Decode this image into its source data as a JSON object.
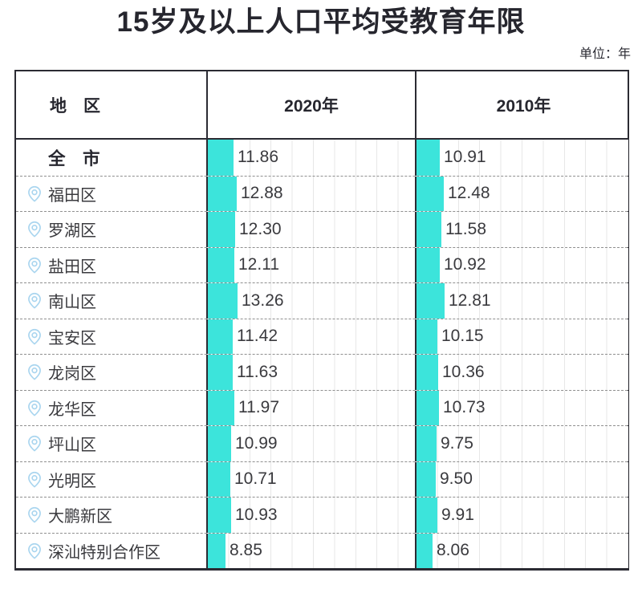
{
  "title": "15岁及以上人口平均受教育年限",
  "unit_label": "单位：年",
  "colors": {
    "bar": "#3ce4db",
    "pin": "#a9d5ef",
    "border": "#2b2b33",
    "gridline": "#e7e7e7",
    "row_divider": "#8f8f8f",
    "text": "#3a3a3e"
  },
  "table": {
    "columns": [
      {
        "label": "地　区"
      },
      {
        "label": "2020年"
      },
      {
        "label": "2010年"
      }
    ],
    "rows": [
      {
        "region": "全　市",
        "is_total": true,
        "has_pin": false,
        "v2020": "11.86",
        "v2010": "10.91"
      },
      {
        "region": "福田区",
        "is_total": false,
        "has_pin": true,
        "v2020": "12.88",
        "v2010": "12.48"
      },
      {
        "region": "罗湖区",
        "is_total": false,
        "has_pin": true,
        "v2020": "12.30",
        "v2010": "11.58"
      },
      {
        "region": "盐田区",
        "is_total": false,
        "has_pin": true,
        "v2020": "12.11",
        "v2010": "10.92"
      },
      {
        "region": "南山区",
        "is_total": false,
        "has_pin": true,
        "v2020": "13.26",
        "v2010": "12.81"
      },
      {
        "region": "宝安区",
        "is_total": false,
        "has_pin": true,
        "v2020": "11.42",
        "v2010": "10.15"
      },
      {
        "region": "龙岗区",
        "is_total": false,
        "has_pin": true,
        "v2020": "11.63",
        "v2010": "10.36"
      },
      {
        "region": "龙华区",
        "is_total": false,
        "has_pin": true,
        "v2020": "11.97",
        "v2010": "10.73"
      },
      {
        "region": "坪山区",
        "is_total": false,
        "has_pin": true,
        "v2020": "10.99",
        "v2010": "9.75"
      },
      {
        "region": "光明区",
        "is_total": false,
        "has_pin": true,
        "v2020": "10.71",
        "v2010": "9.50"
      },
      {
        "region": "大鹏新区",
        "is_total": false,
        "has_pin": true,
        "v2020": "10.93",
        "v2010": "9.91"
      },
      {
        "region": "深汕特别合作区",
        "is_total": false,
        "has_pin": true,
        "v2020": "8.85",
        "v2010": "8.06"
      }
    ]
  },
  "chart_data": {
    "type": "bar",
    "orientation": "horizontal",
    "title": "15岁及以上人口平均受教育年限",
    "unit": "年",
    "value_labels_shown": true,
    "grid": "light-vertical-gridlines",
    "categories": [
      "全市",
      "福田区",
      "罗湖区",
      "盐田区",
      "南山区",
      "宝安区",
      "龙岗区",
      "龙华区",
      "坪山区",
      "光明区",
      "大鹏新区",
      "深汕特别合作区"
    ],
    "series": [
      {
        "name": "2020年",
        "values": [
          11.86,
          12.88,
          12.3,
          12.11,
          13.26,
          11.42,
          11.63,
          11.97,
          10.99,
          10.71,
          10.93,
          8.85
        ]
      },
      {
        "name": "2010年",
        "values": [
          10.91,
          12.48,
          11.58,
          10.92,
          12.81,
          10.15,
          10.36,
          10.73,
          9.75,
          9.5,
          9.91,
          8.06
        ]
      }
    ]
  }
}
